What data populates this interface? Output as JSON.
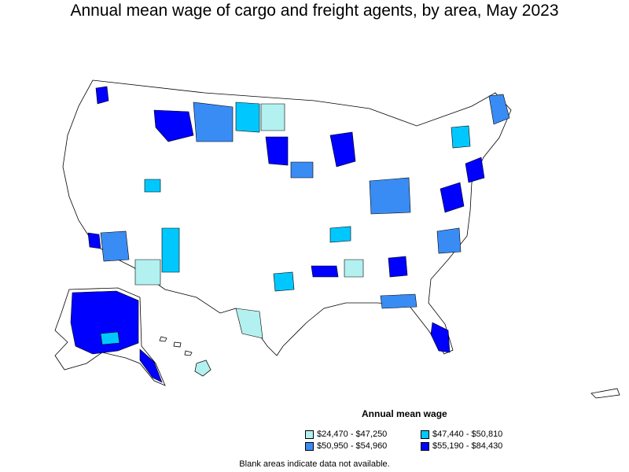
{
  "title": "Annual mean wage of cargo and freight agents, by area, May 2023",
  "legend": {
    "title": "Annual mean wage",
    "items": [
      {
        "label": "$24,470 - $47,250",
        "color": "#b3f0f0"
      },
      {
        "label": "$47,440 - $50,810",
        "color": "#00c8ff"
      },
      {
        "label": "$50,950 - $54,960",
        "color": "#3a8cf5"
      },
      {
        "label": "$55,190 - $84,430",
        "color": "#0000ff"
      }
    ]
  },
  "footnote": "Blank areas indicate data not available."
}
